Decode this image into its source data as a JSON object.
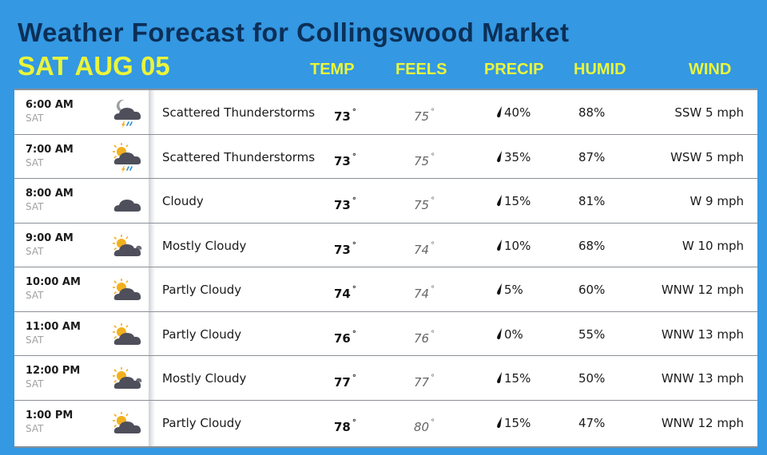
{
  "header": {
    "title": "Weather Forecast for Collingswood Market",
    "date": "SAT AUG 05"
  },
  "columns": {
    "temp": "TEMP",
    "feels": "FEELS",
    "precip": "PRECIP",
    "humid": "HUMID",
    "wind": "WIND"
  },
  "colors": {
    "background": "#3498e2",
    "title": "#0c2f57",
    "accent_yellow": "#eaf53a"
  },
  "rows": [
    {
      "time": "6:00 AM",
      "day": "SAT",
      "icon": "night-thunderstorm-icon",
      "condition": "Scattered Thunderstorms",
      "temp": "73",
      "feels": "75",
      "precip": "40%",
      "humid": "88%",
      "wind": "SSW 5 mph"
    },
    {
      "time": "7:00 AM",
      "day": "SAT",
      "icon": "day-thunderstorm-icon",
      "condition": "Scattered Thunderstorms",
      "temp": "73",
      "feels": "75",
      "precip": "35%",
      "humid": "87%",
      "wind": "WSW 5 mph"
    },
    {
      "time": "8:00 AM",
      "day": "SAT",
      "icon": "cloud-icon",
      "condition": "Cloudy",
      "temp": "73",
      "feels": "75",
      "precip": "15%",
      "humid": "81%",
      "wind": "W 9 mph"
    },
    {
      "time": "9:00 AM",
      "day": "SAT",
      "icon": "mostly-cloudy-icon",
      "condition": "Mostly Cloudy",
      "temp": "73",
      "feels": "74",
      "precip": "10%",
      "humid": "68%",
      "wind": "W 10 mph"
    },
    {
      "time": "10:00 AM",
      "day": "SAT",
      "icon": "partly-cloudy-icon",
      "condition": "Partly Cloudy",
      "temp": "74",
      "feels": "74",
      "precip": "5%",
      "humid": "60%",
      "wind": "WNW 12 mph"
    },
    {
      "time": "11:00 AM",
      "day": "SAT",
      "icon": "partly-cloudy-icon",
      "condition": "Partly Cloudy",
      "temp": "76",
      "feels": "76",
      "precip": "0%",
      "humid": "55%",
      "wind": "WNW 13 mph"
    },
    {
      "time": "12:00 PM",
      "day": "SAT",
      "icon": "mostly-cloudy-icon",
      "condition": "Mostly Cloudy",
      "temp": "77",
      "feels": "77",
      "precip": "15%",
      "humid": "50%",
      "wind": "WNW 13 mph"
    },
    {
      "time": "1:00 PM",
      "day": "SAT",
      "icon": "partly-cloudy-icon",
      "condition": "Partly Cloudy",
      "temp": "78",
      "feels": "80",
      "precip": "15%",
      "humid": "47%",
      "wind": "WNW 12 mph"
    }
  ]
}
